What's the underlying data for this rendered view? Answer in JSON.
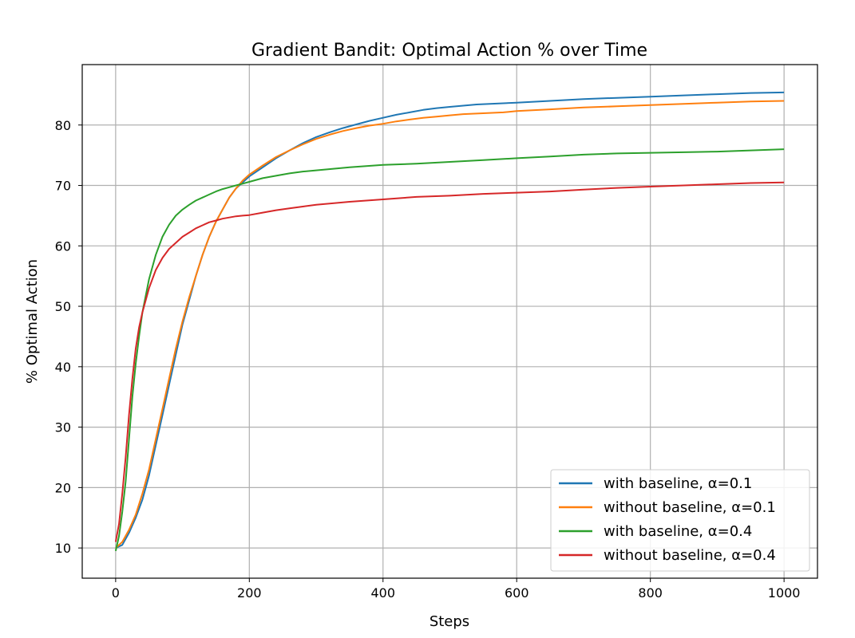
{
  "chart_data": {
    "type": "line",
    "title": "Gradient Bandit: Optimal Action % over Time",
    "xlabel": "Steps",
    "ylabel": "% Optimal Action",
    "xlim": [
      -50,
      1050
    ],
    "ylim": [
      5,
      90
    ],
    "xticks": [
      0,
      200,
      400,
      600,
      800,
      1000
    ],
    "yticks": [
      10,
      20,
      30,
      40,
      50,
      60,
      70,
      80
    ],
    "grid": true,
    "legend_position": "lower-right",
    "series": [
      {
        "name": "with baseline, α=0.1",
        "color": "#1f77b4",
        "x": [
          0,
          10,
          20,
          30,
          40,
          50,
          60,
          70,
          80,
          90,
          100,
          110,
          120,
          130,
          140,
          150,
          160,
          170,
          180,
          190,
          200,
          220,
          240,
          260,
          280,
          300,
          320,
          340,
          360,
          380,
          400,
          420,
          440,
          460,
          480,
          500,
          520,
          540,
          560,
          580,
          600,
          650,
          700,
          750,
          800,
          850,
          900,
          950,
          1000
        ],
        "y": [
          10,
          10.5,
          12.5,
          15,
          18,
          22,
          27,
          32,
          37,
          42,
          47,
          51,
          55,
          58.5,
          61.5,
          64,
          66,
          68,
          69.5,
          70.5,
          71.5,
          73,
          74.5,
          75.8,
          77,
          78,
          78.8,
          79.5,
          80.1,
          80.7,
          81.2,
          81.7,
          82.1,
          82.5,
          82.8,
          83,
          83.2,
          83.4,
          83.5,
          83.6,
          83.7,
          84,
          84.3,
          84.5,
          84.7,
          84.9,
          85.1,
          85.3,
          85.4
        ]
      },
      {
        "name": "without baseline, α=0.1",
        "color": "#ff7f0e",
        "x": [
          0,
          10,
          20,
          30,
          40,
          50,
          60,
          70,
          80,
          90,
          100,
          110,
          120,
          130,
          140,
          150,
          160,
          170,
          180,
          190,
          200,
          220,
          240,
          260,
          280,
          300,
          320,
          340,
          360,
          380,
          400,
          420,
          440,
          460,
          480,
          500,
          520,
          540,
          560,
          580,
          600,
          650,
          700,
          750,
          800,
          850,
          900,
          950,
          1000
        ],
        "y": [
          10,
          11,
          13,
          15.5,
          19,
          23,
          28,
          33,
          38,
          43,
          47.5,
          51.5,
          55,
          58.5,
          61.5,
          64,
          66,
          68,
          69.5,
          70.8,
          71.8,
          73.3,
          74.7,
          75.8,
          76.8,
          77.7,
          78.4,
          79,
          79.5,
          79.9,
          80.2,
          80.6,
          80.9,
          81.2,
          81.4,
          81.6,
          81.8,
          81.9,
          82,
          82.1,
          82.3,
          82.6,
          82.9,
          83.1,
          83.3,
          83.5,
          83.7,
          83.9,
          84
        ]
      },
      {
        "name": "with baseline, α=0.4",
        "color": "#2ca02c",
        "x": [
          0,
          5,
          10,
          15,
          20,
          25,
          30,
          35,
          40,
          50,
          60,
          70,
          80,
          90,
          100,
          110,
          120,
          130,
          140,
          150,
          160,
          170,
          180,
          190,
          200,
          220,
          240,
          260,
          280,
          300,
          350,
          400,
          450,
          500,
          550,
          600,
          650,
          700,
          750,
          800,
          850,
          900,
          950,
          1000
        ],
        "y": [
          9.5,
          12,
          16,
          21,
          28,
          35,
          40.5,
          45,
          49,
          54.5,
          58.5,
          61.5,
          63.5,
          65,
          66,
          66.8,
          67.5,
          68,
          68.5,
          69,
          69.4,
          69.7,
          70,
          70.3,
          70.6,
          71.2,
          71.6,
          72,
          72.3,
          72.5,
          73,
          73.4,
          73.6,
          73.9,
          74.2,
          74.5,
          74.8,
          75.1,
          75.3,
          75.4,
          75.5,
          75.6,
          75.8,
          76
        ]
      },
      {
        "name": "without baseline, α=0.4",
        "color": "#d62728",
        "x": [
          0,
          5,
          10,
          15,
          20,
          25,
          30,
          35,
          40,
          50,
          60,
          70,
          80,
          90,
          100,
          110,
          120,
          130,
          140,
          150,
          160,
          170,
          180,
          190,
          200,
          220,
          240,
          260,
          280,
          300,
          350,
          400,
          450,
          500,
          550,
          600,
          650,
          700,
          750,
          800,
          850,
          900,
          950,
          1000
        ],
        "y": [
          11,
          14,
          19,
          25,
          32,
          38,
          43,
          46.5,
          49,
          53,
          56,
          58,
          59.5,
          60.5,
          61.5,
          62.2,
          62.9,
          63.4,
          63.9,
          64.2,
          64.5,
          64.7,
          64.9,
          65,
          65.1,
          65.5,
          65.9,
          66.2,
          66.5,
          66.8,
          67.3,
          67.7,
          68.1,
          68.3,
          68.6,
          68.8,
          69,
          69.3,
          69.6,
          69.8,
          70,
          70.2,
          70.4,
          70.5
        ]
      }
    ]
  }
}
